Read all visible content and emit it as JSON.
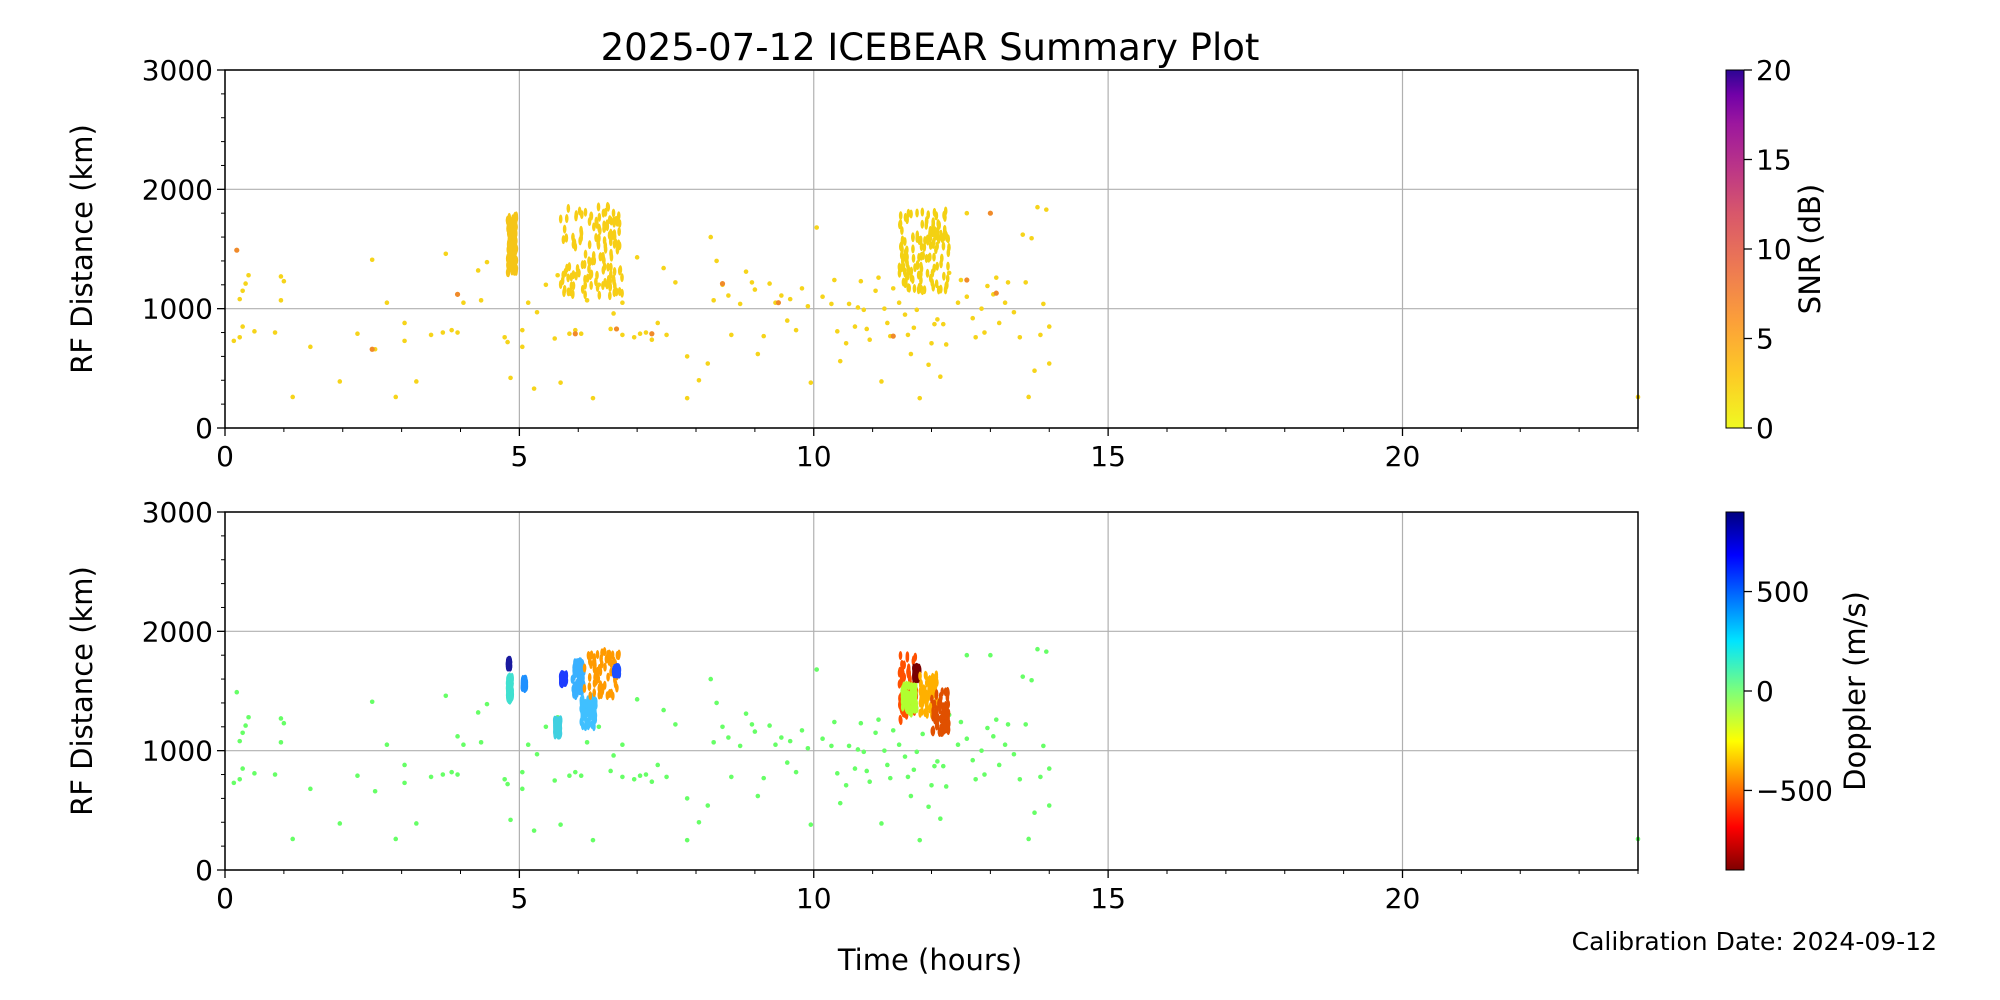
{
  "title": "2025-07-12 ICEBEAR Summary Plot",
  "footnote": "Calibration Date: 2024-09-12",
  "chart_data": [
    {
      "type": "scatter",
      "id": "snr",
      "ylabel": "RF Distance (km)",
      "xlabel": "",
      "xlim": [
        0,
        24
      ],
      "ylim": [
        0,
        3000
      ],
      "xticks": [
        0,
        5,
        10,
        15,
        20
      ],
      "yticks": [
        0,
        1000,
        2000,
        3000
      ],
      "grid": true,
      "colorbar": {
        "label": "SNR (dB)",
        "range": [
          0,
          20
        ],
        "ticks": [
          0,
          5,
          10,
          15,
          20
        ],
        "colormap": "plasma_r"
      },
      "base_color": "#f6d41a",
      "dense_groups": [
        {
          "x": [
            4.8,
            4.95
          ],
          "y": [
            1300,
            1780
          ],
          "color": "#f5c518"
        },
        {
          "x": [
            5.7,
            6.75
          ],
          "y": [
            1100,
            1880
          ],
          "color": "#f7ce16"
        },
        {
          "x": [
            11.45,
            12.3
          ],
          "y": [
            1150,
            1820
          ],
          "color": "#f3d112"
        }
      ],
      "points": [
        [
          0.2,
          1490
        ],
        [
          0.25,
          1080
        ],
        [
          0.3,
          1150
        ],
        [
          0.35,
          1210
        ],
        [
          0.4,
          1280
        ],
        [
          0.25,
          760
        ],
        [
          0.3,
          850
        ],
        [
          0.15,
          730
        ],
        [
          0.5,
          810
        ],
        [
          0.85,
          800
        ],
        [
          0.95,
          1270
        ],
        [
          1.0,
          1230
        ],
        [
          0.95,
          1070
        ],
        [
          1.15,
          260
        ],
        [
          1.45,
          680
        ],
        [
          1.95,
          390
        ],
        [
          2.25,
          790
        ],
        [
          2.5,
          1410
        ],
        [
          2.55,
          660
        ],
        [
          2.75,
          1050
        ],
        [
          2.9,
          260
        ],
        [
          3.05,
          730
        ],
        [
          3.05,
          880
        ],
        [
          3.25,
          390
        ],
        [
          3.5,
          780
        ],
        [
          3.7,
          800
        ],
        [
          3.75,
          1460
        ],
        [
          3.85,
          820
        ],
        [
          3.95,
          800
        ],
        [
          3.95,
          1120
        ],
        [
          4.05,
          1050
        ],
        [
          4.3,
          1320
        ],
        [
          4.35,
          1070
        ],
        [
          4.45,
          1390
        ],
        [
          4.75,
          760
        ],
        [
          4.8,
          720
        ],
        [
          4.85,
          420
        ],
        [
          5.05,
          820
        ],
        [
          5.05,
          680
        ],
        [
          5.15,
          1050
        ],
        [
          5.25,
          330
        ],
        [
          5.3,
          970
        ],
        [
          5.45,
          1200
        ],
        [
          5.6,
          750
        ],
        [
          5.65,
          1280
        ],
        [
          5.7,
          380
        ],
        [
          5.85,
          790
        ],
        [
          5.95,
          820
        ],
        [
          6.05,
          790
        ],
        [
          6.15,
          1070
        ],
        [
          6.25,
          250
        ],
        [
          6.35,
          1200
        ],
        [
          6.55,
          830
        ],
        [
          6.6,
          960
        ],
        [
          6.75,
          1050
        ],
        [
          6.75,
          780
        ],
        [
          6.95,
          760
        ],
        [
          7.0,
          1430
        ],
        [
          7.05,
          790
        ],
        [
          7.15,
          800
        ],
        [
          7.25,
          740
        ],
        [
          7.35,
          880
        ],
        [
          7.45,
          1340
        ],
        [
          7.5,
          780
        ],
        [
          7.65,
          1220
        ],
        [
          7.85,
          250
        ],
        [
          7.85,
          600
        ],
        [
          8.05,
          400
        ],
        [
          8.2,
          540
        ],
        [
          8.25,
          1600
        ],
        [
          8.3,
          1070
        ],
        [
          8.35,
          1400
        ],
        [
          8.45,
          1200
        ],
        [
          8.55,
          1110
        ],
        [
          8.6,
          780
        ],
        [
          8.75,
          1040
        ],
        [
          8.85,
          1310
        ],
        [
          8.95,
          1220
        ],
        [
          9.0,
          1160
        ],
        [
          9.05,
          620
        ],
        [
          9.15,
          770
        ],
        [
          9.25,
          1210
        ],
        [
          9.35,
          1050
        ],
        [
          9.45,
          1110
        ],
        [
          9.55,
          900
        ],
        [
          9.6,
          1080
        ],
        [
          9.7,
          820
        ],
        [
          9.8,
          1170
        ],
        [
          9.9,
          1020
        ],
        [
          9.95,
          380
        ],
        [
          10.05,
          1680
        ],
        [
          10.15,
          1100
        ],
        [
          10.3,
          1040
        ],
        [
          10.35,
          1240
        ],
        [
          10.4,
          810
        ],
        [
          10.45,
          560
        ],
        [
          10.55,
          710
        ],
        [
          10.6,
          1040
        ],
        [
          10.7,
          850
        ],
        [
          10.75,
          1010
        ],
        [
          10.8,
          1230
        ],
        [
          10.85,
          990
        ],
        [
          10.9,
          830
        ],
        [
          10.95,
          740
        ],
        [
          11.05,
          1150
        ],
        [
          11.1,
          1260
        ],
        [
          11.15,
          390
        ],
        [
          11.2,
          1000
        ],
        [
          11.25,
          880
        ],
        [
          11.3,
          770
        ],
        [
          11.35,
          1170
        ],
        [
          11.45,
          1050
        ],
        [
          11.55,
          950
        ],
        [
          11.6,
          780
        ],
        [
          11.65,
          620
        ],
        [
          11.7,
          840
        ],
        [
          11.75,
          990
        ],
        [
          11.8,
          250
        ],
        [
          11.85,
          1140
        ],
        [
          11.95,
          530
        ],
        [
          12.0,
          710
        ],
        [
          12.05,
          870
        ],
        [
          12.1,
          910
        ],
        [
          12.15,
          430
        ],
        [
          12.2,
          870
        ],
        [
          12.25,
          700
        ],
        [
          12.3,
          1300
        ],
        [
          12.45,
          1050
        ],
        [
          12.5,
          1240
        ],
        [
          12.6,
          1100
        ],
        [
          12.6,
          1800
        ],
        [
          12.7,
          920
        ],
        [
          12.75,
          760
        ],
        [
          12.85,
          1000
        ],
        [
          12.9,
          800
        ],
        [
          12.95,
          1190
        ],
        [
          13.0,
          1800
        ],
        [
          13.05,
          1120
        ],
        [
          13.1,
          1260
        ],
        [
          13.15,
          880
        ],
        [
          13.25,
          1050
        ],
        [
          13.3,
          1220
        ],
        [
          13.4,
          970
        ],
        [
          13.5,
          760
        ],
        [
          13.55,
          1620
        ],
        [
          13.6,
          1220
        ],
        [
          13.65,
          260
        ],
        [
          13.7,
          1590
        ],
        [
          13.75,
          480
        ],
        [
          13.8,
          1850
        ],
        [
          13.85,
          780
        ],
        [
          13.9,
          1040
        ],
        [
          13.95,
          1830
        ],
        [
          14.0,
          850
        ],
        [
          14.0,
          540
        ],
        [
          24.0,
          260
        ]
      ],
      "accents": [
        [
          0.2,
          1490
        ],
        [
          2.5,
          660
        ],
        [
          3.95,
          1120
        ],
        [
          5.95,
          790
        ],
        [
          6.65,
          830
        ],
        [
          7.25,
          790
        ],
        [
          8.45,
          1210
        ],
        [
          9.4,
          1050
        ],
        [
          11.35,
          770
        ],
        [
          12.6,
          1240
        ],
        [
          13.0,
          1800
        ],
        [
          13.1,
          1130
        ]
      ]
    },
    {
      "type": "scatter",
      "id": "doppler",
      "ylabel": "RF Distance (km)",
      "xlabel": "Time (hours)",
      "xlim": [
        0,
        24
      ],
      "ylim": [
        0,
        3000
      ],
      "xticks": [
        0,
        5,
        10,
        15,
        20
      ],
      "yticks": [
        0,
        1000,
        2000,
        3000
      ],
      "grid": true,
      "colorbar": {
        "label": "Doppler (m/s)",
        "range": [
          -900,
          900
        ],
        "ticks": [
          500,
          0,
          -500
        ],
        "tick_labels": [
          "500",
          "0",
          "−500"
        ],
        "colormap": "jet_r"
      },
      "base_color": "#66ff66",
      "features": [
        {
          "x": [
            4.8,
            4.85
          ],
          "y": [
            1700,
            1760
          ],
          "color": "#1a1a9e"
        },
        {
          "x": [
            4.8,
            4.88
          ],
          "y": [
            1420,
            1620
          ],
          "color": "#40e0d0"
        },
        {
          "x": [
            5.05,
            5.12
          ],
          "y": [
            1520,
            1600
          ],
          "color": "#1e90ff"
        },
        {
          "x": [
            5.6,
            5.7
          ],
          "y": [
            1130,
            1260
          ],
          "color": "#40d0e0"
        },
        {
          "x": [
            5.7,
            5.8
          ],
          "y": [
            1560,
            1640
          ],
          "color": "#1f3cff"
        },
        {
          "x": [
            5.9,
            6.1
          ],
          "y": [
            1450,
            1750
          ],
          "color": "#3ab0ff"
        },
        {
          "x": [
            6.05,
            6.3
          ],
          "y": [
            1200,
            1450
          ],
          "color": "#40c0ff"
        },
        {
          "x": [
            6.1,
            6.7
          ],
          "y": [
            1450,
            1840
          ],
          "color": "#ff9a00"
        },
        {
          "x": [
            6.6,
            6.7
          ],
          "y": [
            1640,
            1700
          ],
          "color": "#1f50ff"
        },
        {
          "x": [
            11.45,
            11.75
          ],
          "y": [
            1250,
            1800
          ],
          "color": "#ff5000"
        },
        {
          "x": [
            11.5,
            11.75
          ],
          "y": [
            1300,
            1550
          ],
          "color": "#b0ff30"
        },
        {
          "x": [
            11.7,
            11.8
          ],
          "y": [
            1600,
            1700
          ],
          "color": "#7a0000"
        },
        {
          "x": [
            11.8,
            12.1
          ],
          "y": [
            1300,
            1650
          ],
          "color": "#ffb000"
        },
        {
          "x": [
            12.0,
            12.3
          ],
          "y": [
            1150,
            1500
          ],
          "color": "#e05000"
        }
      ],
      "points_from": "snr"
    }
  ]
}
